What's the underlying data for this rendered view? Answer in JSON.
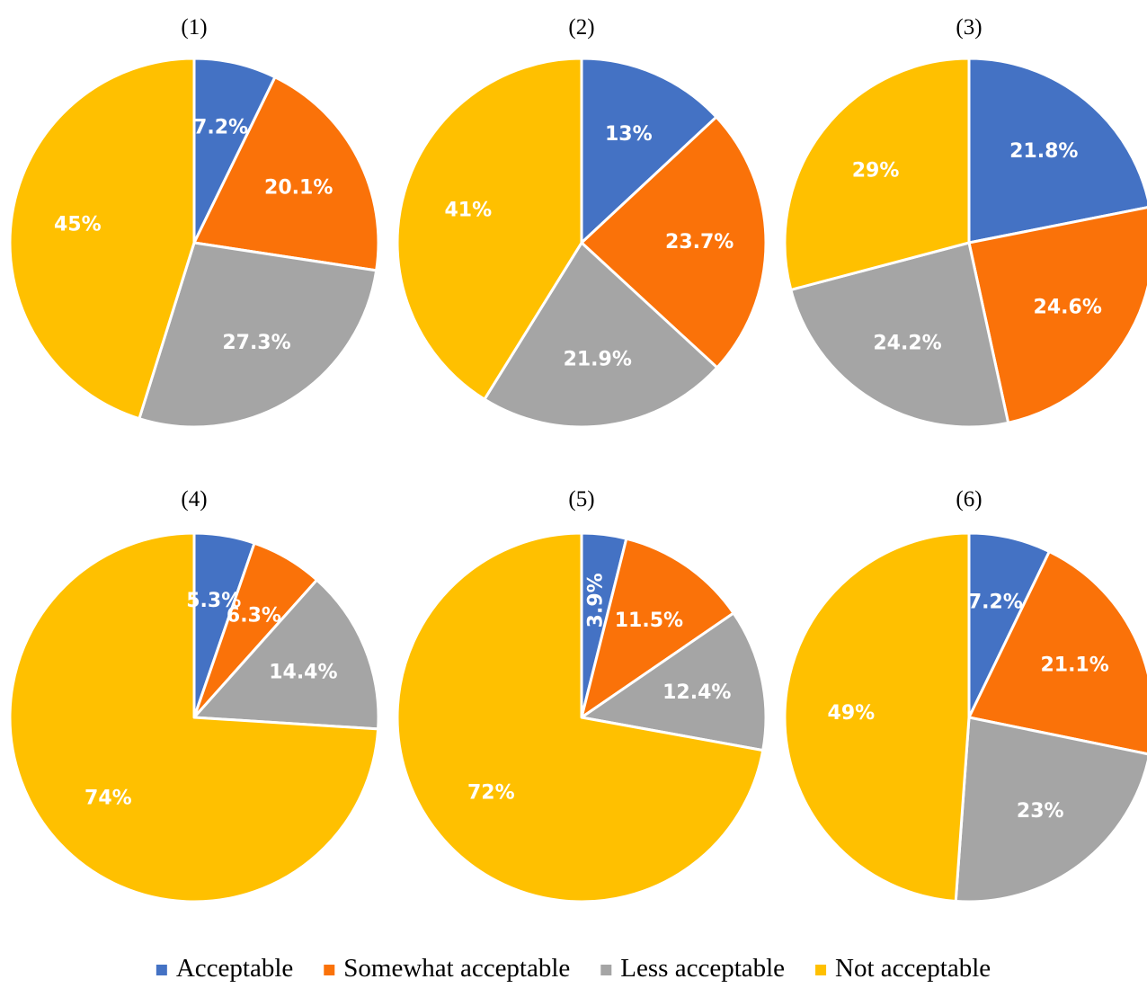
{
  "colors": {
    "Acceptable": "#4472C4",
    "Somewhat acceptable": "#FA7209",
    "Less acceptable": "#A5A5A5",
    "Not acceptable": "#FFC000"
  },
  "legend": {
    "position": "bottom",
    "entries": [
      "Acceptable",
      "Somewhat acceptable",
      "Less acceptable",
      "Not acceptable"
    ]
  },
  "chart_data": [
    {
      "type": "pie",
      "title": "(1)",
      "categories": [
        "Acceptable",
        "Somewhat acceptable",
        "Less acceptable",
        "Not acceptable"
      ],
      "values": [
        7.2,
        20.1,
        27.3,
        45
      ],
      "labels": [
        "7.2%",
        "20.1%",
        "27.3%",
        "45%"
      ]
    },
    {
      "type": "pie",
      "title": "(2)",
      "categories": [
        "Acceptable",
        "Somewhat acceptable",
        "Less acceptable",
        "Not acceptable"
      ],
      "values": [
        13,
        23.7,
        21.9,
        41
      ],
      "labels": [
        "13%",
        "23.7%",
        "21.9%",
        "41%"
      ]
    },
    {
      "type": "pie",
      "title": "(3)",
      "categories": [
        "Acceptable",
        "Somewhat acceptable",
        "Less acceptable",
        "Not acceptable"
      ],
      "values": [
        21.8,
        24.6,
        24.2,
        29
      ],
      "labels": [
        "21.8%",
        "24.6%",
        "24.2%",
        "29%"
      ]
    },
    {
      "type": "pie",
      "title": "(4)",
      "categories": [
        "Acceptable",
        "Somewhat acceptable",
        "Less acceptable",
        "Not acceptable"
      ],
      "values": [
        5.3,
        6.3,
        14.4,
        74
      ],
      "labels": [
        "5.3%",
        "6.3%",
        "14.4%",
        "74%"
      ]
    },
    {
      "type": "pie",
      "title": "(5)",
      "categories": [
        "Acceptable",
        "Somewhat acceptable",
        "Less acceptable",
        "Not acceptable"
      ],
      "values": [
        3.9,
        11.5,
        12.4,
        72
      ],
      "labels": [
        "3.9%",
        "11.5%",
        "12.4%",
        "72%"
      ]
    },
    {
      "type": "pie",
      "title": "(6)",
      "categories": [
        "Acceptable",
        "Somewhat acceptable",
        "Less acceptable",
        "Not acceptable"
      ],
      "values": [
        7.2,
        21.1,
        23,
        49
      ],
      "labels": [
        "7.2%",
        "21.1%",
        "23%",
        "49%"
      ]
    }
  ]
}
